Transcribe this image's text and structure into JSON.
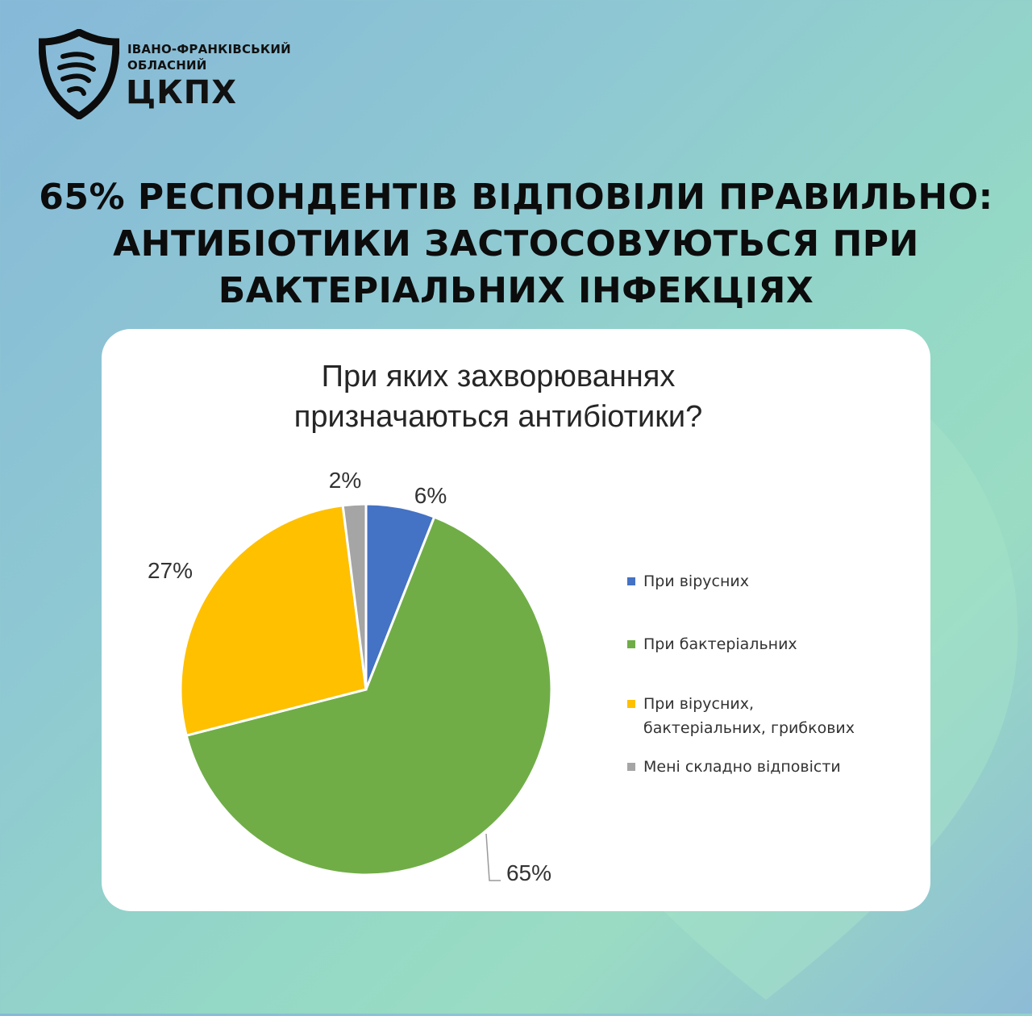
{
  "brand": {
    "line1": "ІВАНО-ФРАНКІВСЬКИЙ",
    "line2": "ОБЛАСНИЙ",
    "name": "ЦКПХ"
  },
  "headline": {
    "line1": "65% РЕСПОНДЕНТІВ ВІДПОВІЛИ ПРАВИЛЬНО:",
    "line2": "АНТИБІОТИКИ ЗАСТОСОВУЮТЬСЯ ПРИ",
    "line3": "БАКТЕРІАЛЬНИХ ІНФЕКЦІЯХ"
  },
  "chart_data": {
    "type": "pie",
    "title_line1": "При яких захворюваннях",
    "title_line2": "призначаються антибіотики?",
    "legend_position": "right",
    "slices": [
      {
        "label": "При вірусних",
        "value": 6,
        "data_label": "6%",
        "color": "#4472c4"
      },
      {
        "label": "При бактеріальних",
        "value": 65,
        "data_label": "65%",
        "color": "#70ad47"
      },
      {
        "label": "При вірусних,\nбактеріальних, грибкових",
        "value": 27,
        "data_label": "27%",
        "color": "#ffc000"
      },
      {
        "label": "Мені складно відповісти",
        "value": 2,
        "data_label": "2%",
        "color": "#a5a5a5"
      }
    ]
  }
}
